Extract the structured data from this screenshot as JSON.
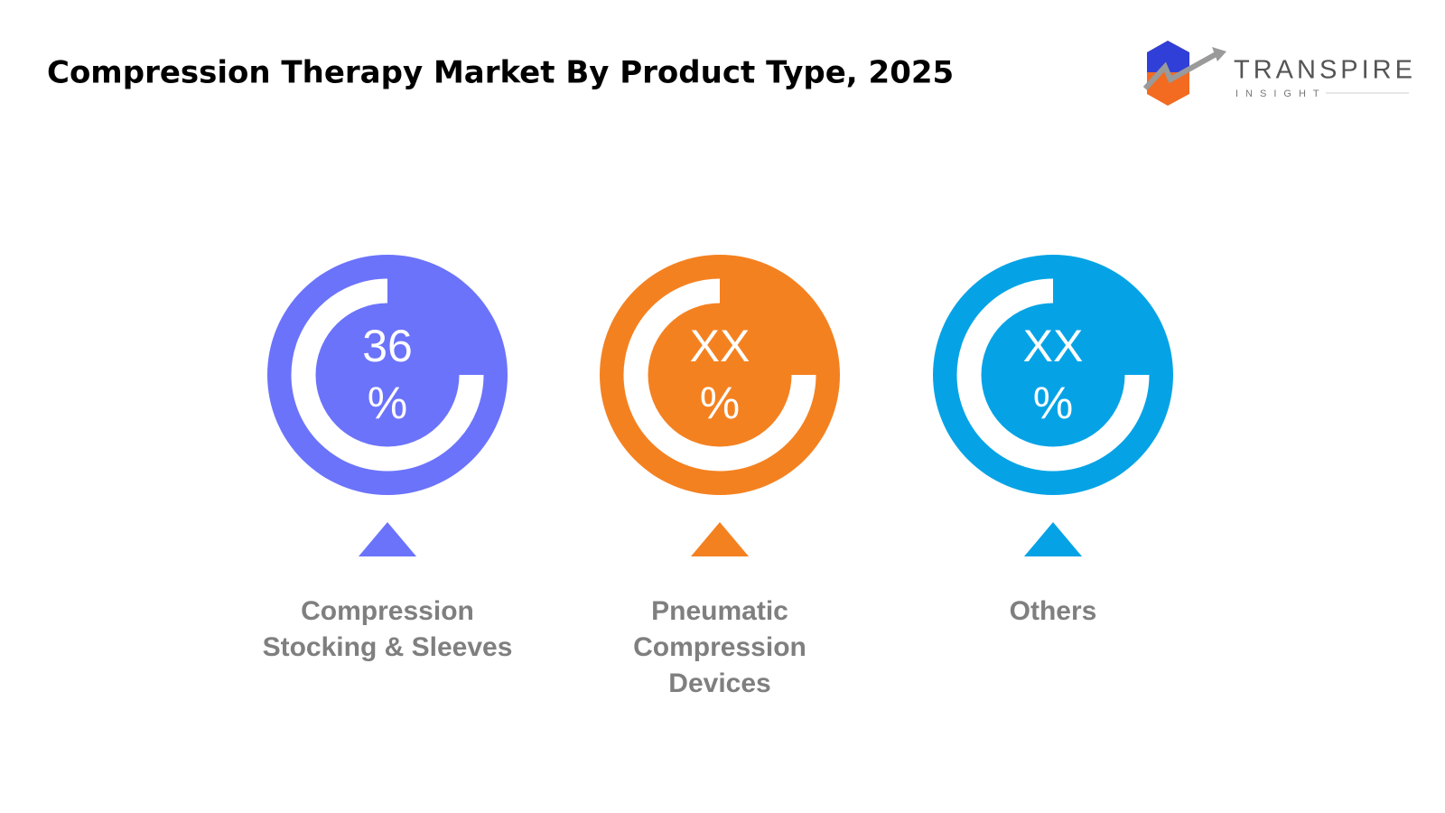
{
  "header": {
    "title": "Compression Therapy Market By Product Type, 2025"
  },
  "logo": {
    "name": "TRANSPIRE",
    "tagline": "INSIGHT"
  },
  "items": [
    {
      "value": 36,
      "unit": "%",
      "label": [
        "Compression",
        "Stocking & Sleeves"
      ],
      "color": "#6b73fb"
    },
    {
      "value": "XX",
      "unit": "%",
      "label": [
        "Pneumatic",
        "Compression",
        "Devices"
      ],
      "color": "#f48120"
    },
    {
      "value": "XX",
      "unit": "%",
      "label": [
        "Others"
      ],
      "color": "#05a3e6"
    }
  ]
}
